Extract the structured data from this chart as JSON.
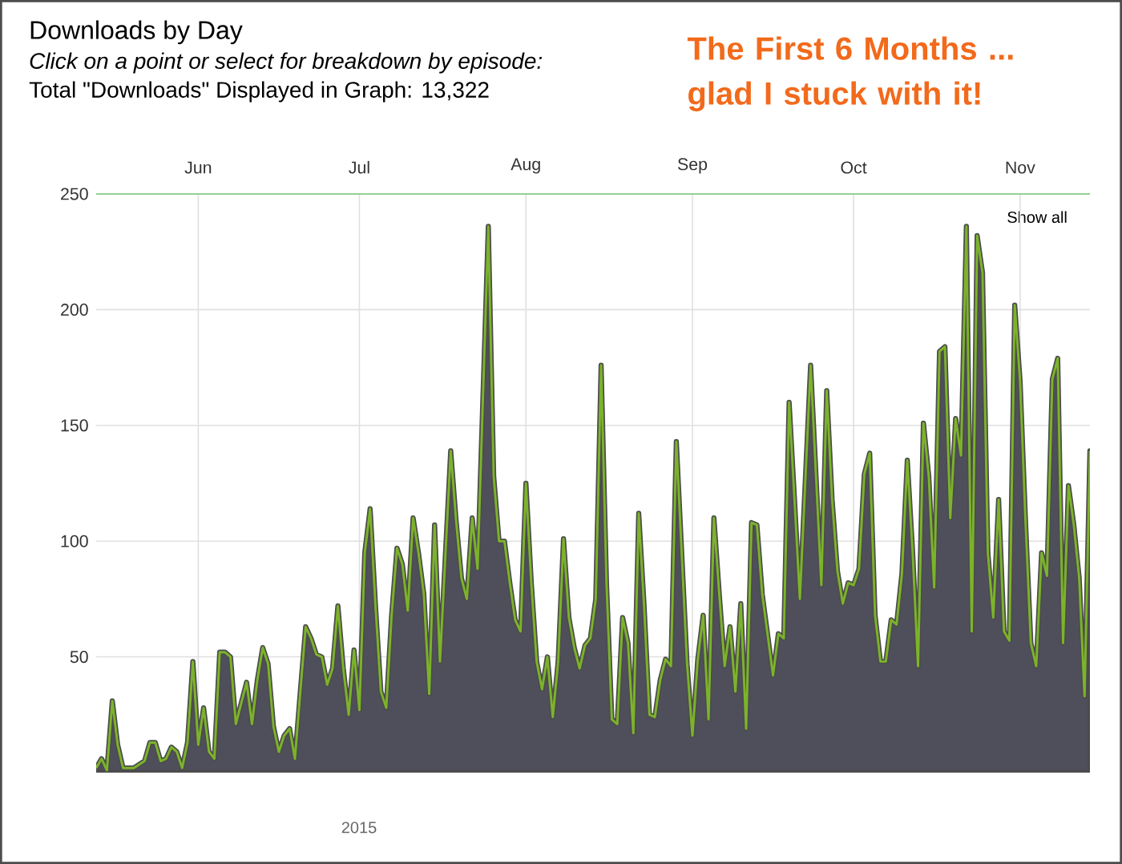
{
  "chart_data": {
    "type": "area",
    "title": "Downloads by Day",
    "subtitle": "Click on a point or select for breakdown by episode:",
    "annotations": [
      "Total \"Downloads\" Displayed in Graph: 13,322",
      "The First 6 Months ... glad I stuck with it!",
      "Show all",
      "2015"
    ],
    "x": [
      "2015-05-13",
      "2015-05-14",
      "2015-05-15",
      "2015-05-16",
      "2015-05-17",
      "2015-05-18",
      "2015-05-20",
      "2015-05-22",
      "2015-05-23",
      "2015-05-24",
      "2015-05-25",
      "2015-05-26",
      "2015-05-27",
      "2015-05-28",
      "2015-05-29",
      "2015-05-30",
      "2015-05-31",
      "2015-06-01",
      "2015-06-02",
      "2015-06-03",
      "2015-06-04",
      "2015-06-05",
      "2015-06-06",
      "2015-06-07",
      "2015-06-08",
      "2015-06-09",
      "2015-06-10",
      "2015-06-11",
      "2015-06-12",
      "2015-06-13",
      "2015-06-14",
      "2015-06-15",
      "2015-06-16",
      "2015-06-17",
      "2015-06-18",
      "2015-06-19",
      "2015-06-20",
      "2015-06-21",
      "2015-06-22",
      "2015-06-23",
      "2015-06-24",
      "2015-06-25",
      "2015-06-26",
      "2015-06-27",
      "2015-06-28",
      "2015-06-29",
      "2015-06-30",
      "2015-07-01",
      "2015-07-02",
      "2015-07-03",
      "2015-07-04",
      "2015-07-05",
      "2015-07-06",
      "2015-07-07",
      "2015-07-08",
      "2015-07-09",
      "2015-07-10",
      "2015-07-11",
      "2015-07-12",
      "2015-07-13",
      "2015-07-14",
      "2015-07-15",
      "2015-07-16",
      "2015-07-18",
      "2015-07-19",
      "2015-07-20",
      "2015-07-21",
      "2015-07-22",
      "2015-07-23",
      "2015-07-25",
      "2015-07-26",
      "2015-07-27",
      "2015-07-28",
      "2015-07-29",
      "2015-07-30",
      "2015-07-31",
      "2015-08-01",
      "2015-08-02",
      "2015-08-03",
      "2015-08-04",
      "2015-08-05",
      "2015-08-06",
      "2015-08-07",
      "2015-08-08",
      "2015-08-09",
      "2015-08-10",
      "2015-08-11",
      "2015-08-12",
      "2015-08-13",
      "2015-08-14",
      "2015-08-15",
      "2015-08-16",
      "2015-08-17",
      "2015-08-18",
      "2015-08-19",
      "2015-08-20",
      "2015-08-21",
      "2015-08-22",
      "2015-08-23",
      "2015-08-24",
      "2015-08-25",
      "2015-08-26",
      "2015-08-27",
      "2015-08-28",
      "2015-08-29",
      "2015-08-30",
      "2015-08-31",
      "2015-09-01",
      "2015-09-02",
      "2015-09-03",
      "2015-09-04",
      "2015-09-05",
      "2015-09-06",
      "2015-09-07",
      "2015-09-08",
      "2015-09-09",
      "2015-09-10",
      "2015-09-11",
      "2015-09-12",
      "2015-09-13",
      "2015-09-14",
      "2015-09-16",
      "2015-09-17",
      "2015-09-18",
      "2015-09-19",
      "2015-09-20",
      "2015-09-21",
      "2015-09-23",
      "2015-09-25",
      "2015-09-26",
      "2015-09-27",
      "2015-09-28",
      "2015-09-29",
      "2015-09-30",
      "2015-10-01",
      "2015-10-02",
      "2015-10-03",
      "2015-10-04",
      "2015-10-05",
      "2015-10-06",
      "2015-10-07",
      "2015-10-08",
      "2015-10-09",
      "2015-10-10",
      "2015-10-11",
      "2015-10-12",
      "2015-10-13",
      "2015-10-14",
      "2015-10-15",
      "2015-10-16",
      "2015-10-17",
      "2015-10-18",
      "2015-10-19",
      "2015-10-20",
      "2015-10-21",
      "2015-10-22",
      "2015-10-23",
      "2015-10-24",
      "2015-10-25",
      "2015-10-26",
      "2015-10-27",
      "2015-10-28",
      "2015-10-29",
      "2015-10-30",
      "2015-10-31",
      "2015-11-01",
      "2015-11-02",
      "2015-11-03",
      "2015-11-04",
      "2015-11-05",
      "2015-11-06",
      "2015-11-07",
      "2015-11-08",
      "2015-11-09",
      "2015-11-10",
      "2015-11-11",
      "2015-11-12",
      "2015-11-13",
      "2015-11-14"
    ],
    "series": [
      {
        "color": "#7cb32b",
        "values": [
          2,
          6,
          1,
          31,
          12,
          2,
          2,
          5,
          13,
          13,
          5,
          6,
          11,
          9,
          2,
          13,
          48,
          12,
          28,
          9,
          6,
          52,
          52,
          50,
          21,
          30,
          39,
          21,
          40,
          54,
          47,
          20,
          9,
          16,
          19,
          6,
          35,
          63,
          58,
          51,
          50,
          38,
          45,
          72,
          45,
          25,
          53,
          27,
          95,
          114,
          72,
          35,
          28,
          68,
          97,
          90,
          70,
          110,
          95,
          77,
          34,
          107,
          48,
          139,
          109,
          84,
          75,
          110,
          88,
          236,
          128,
          100,
          100,
          82,
          66,
          61,
          125,
          82,
          48,
          36,
          50,
          24,
          48,
          101,
          67,
          54,
          45,
          55,
          58,
          75,
          176,
          82,
          23,
          21,
          67,
          56,
          17,
          112,
          72,
          25,
          24,
          40,
          49,
          46,
          143,
          95,
          47,
          16,
          49,
          68,
          23,
          110,
          77,
          46,
          63,
          35,
          73,
          19,
          108,
          107,
          77,
          42,
          60,
          58,
          160,
          118,
          75,
          176,
          81,
          165,
          118,
          87,
          73,
          82,
          81,
          88,
          129,
          138,
          68,
          48,
          48,
          66,
          64,
          86,
          135,
          95,
          46,
          151,
          128,
          80,
          182,
          184,
          110,
          153,
          137,
          236,
          61,
          232,
          216,
          95,
          67,
          118,
          61,
          57,
          202,
          169,
          109,
          56,
          46,
          95,
          85,
          170,
          179,
          56,
          124,
          107,
          84,
          33,
          139
        ]
      }
    ],
    "xlim": [
      "2015-05-13",
      "2015-11-14"
    ],
    "xticks": [
      {
        "value": "2015-06-01",
        "label": "Jun"
      },
      {
        "value": "2015-07-01",
        "label": "Jul"
      },
      {
        "value": "2015-08-01",
        "label": "Aug"
      },
      {
        "value": "2015-09-01",
        "label": "Sep"
      },
      {
        "value": "2015-10-01",
        "label": "Oct"
      },
      {
        "value": "2015-11-01",
        "label": "Nov"
      }
    ],
    "ylim": [
      0,
      250
    ],
    "yticks": [
      50,
      100,
      150,
      200,
      250
    ],
    "grid": true,
    "marker": "none",
    "line_style": "solid"
  }
}
